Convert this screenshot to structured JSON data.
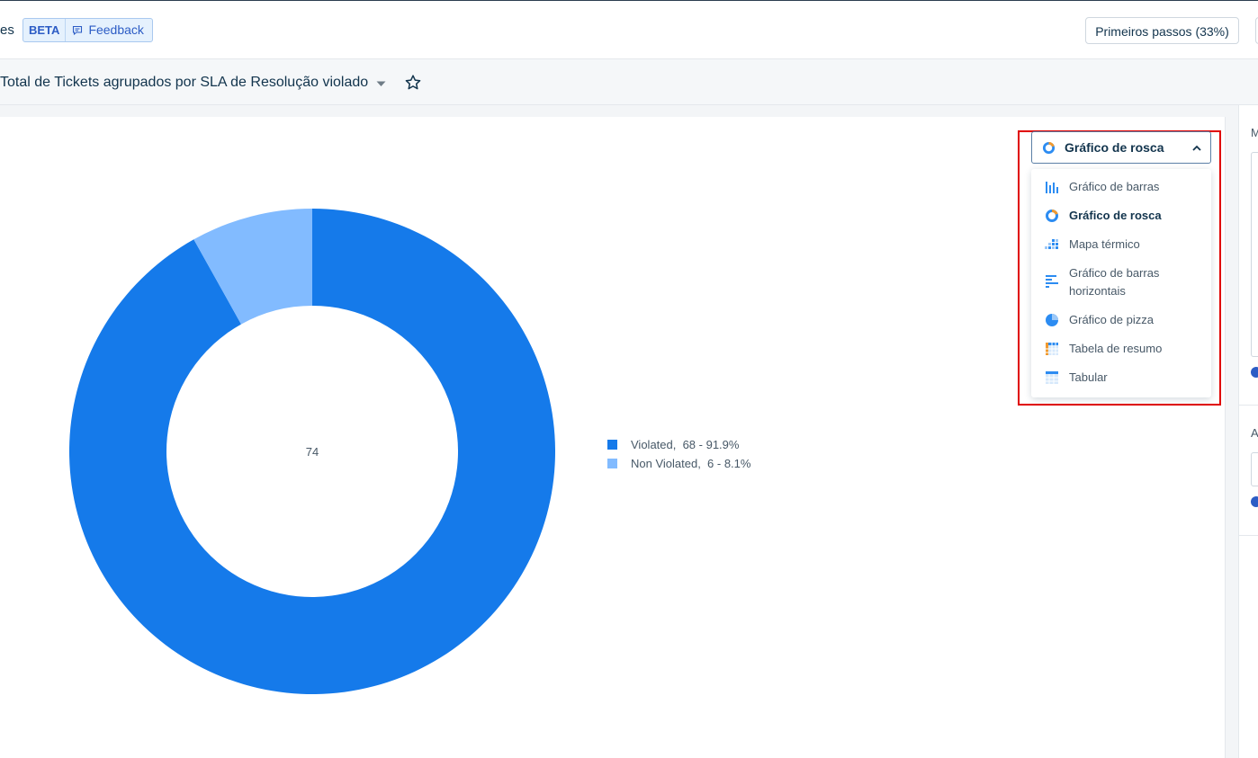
{
  "header": {
    "crumb_tail": "es",
    "beta_label": "BETA",
    "feedback_label": "Feedback",
    "first_steps_label": "Primeiros passos (33%)"
  },
  "report": {
    "title": "Total de Tickets agrupados por SLA de Resolução violado"
  },
  "chart_selector": {
    "selected_label": "Gráfico de rosca",
    "options": [
      {
        "label": "Gráfico de barras",
        "icon": "bar-chart-icon"
      },
      {
        "label": "Gráfico de rosca",
        "icon": "donut-chart-icon"
      },
      {
        "label": "Mapa térmico",
        "icon": "heatmap-icon"
      },
      {
        "label": "Gráfico de barras horizontais",
        "icon": "horizontal-bar-chart-icon"
      },
      {
        "label": "Gráfico de pizza",
        "icon": "pie-chart-icon"
      },
      {
        "label": "Tabela de resumo",
        "icon": "summary-table-icon"
      },
      {
        "label": "Tabular",
        "icon": "tabular-icon"
      }
    ]
  },
  "side_panel": {
    "label_1": "M",
    "label_2": "A"
  },
  "chart_data": {
    "type": "pie",
    "variant": "donut",
    "center_label": "74",
    "categories": [
      "Violated",
      "Non Violated"
    ],
    "values": [
      68,
      6
    ],
    "percentages": [
      91.9,
      8.1
    ],
    "legend_texts": [
      "Violated,  68 - 91.9%",
      "Non Violated,  6 - 8.1%"
    ],
    "colors": [
      "#157aea",
      "#82bbff"
    ],
    "legend_position": "right"
  },
  "colors": {
    "primary": "#157aea",
    "secondary": "#82bbff",
    "highlight": "#e00000"
  }
}
